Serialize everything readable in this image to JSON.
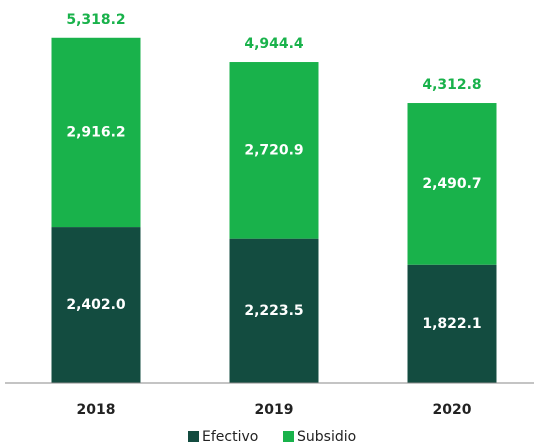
{
  "chart_data": {
    "type": "stacked-bar",
    "categories": [
      "2018",
      "2019",
      "2020"
    ],
    "series": [
      {
        "name": "Efectivo",
        "color": "#134c40",
        "values": [
          2402.0,
          2223.5,
          1822.1
        ],
        "value_labels": [
          "2,402.0",
          "2,223.5",
          "1,822.1"
        ]
      },
      {
        "name": "Subsidio",
        "color": "#19b24b",
        "values": [
          2916.2,
          2720.9,
          2490.7
        ],
        "value_labels": [
          "2,916.2",
          "2,720.9",
          "2,490.7"
        ]
      }
    ],
    "totals": [
      5318.2,
      4944.4,
      4312.8
    ],
    "total_labels": [
      "5,318.2",
      "4,944.4",
      "4,312.8"
    ],
    "total_color": "#19b24b",
    "ylim": [
      0,
      5900
    ],
    "legend": "bottom"
  }
}
